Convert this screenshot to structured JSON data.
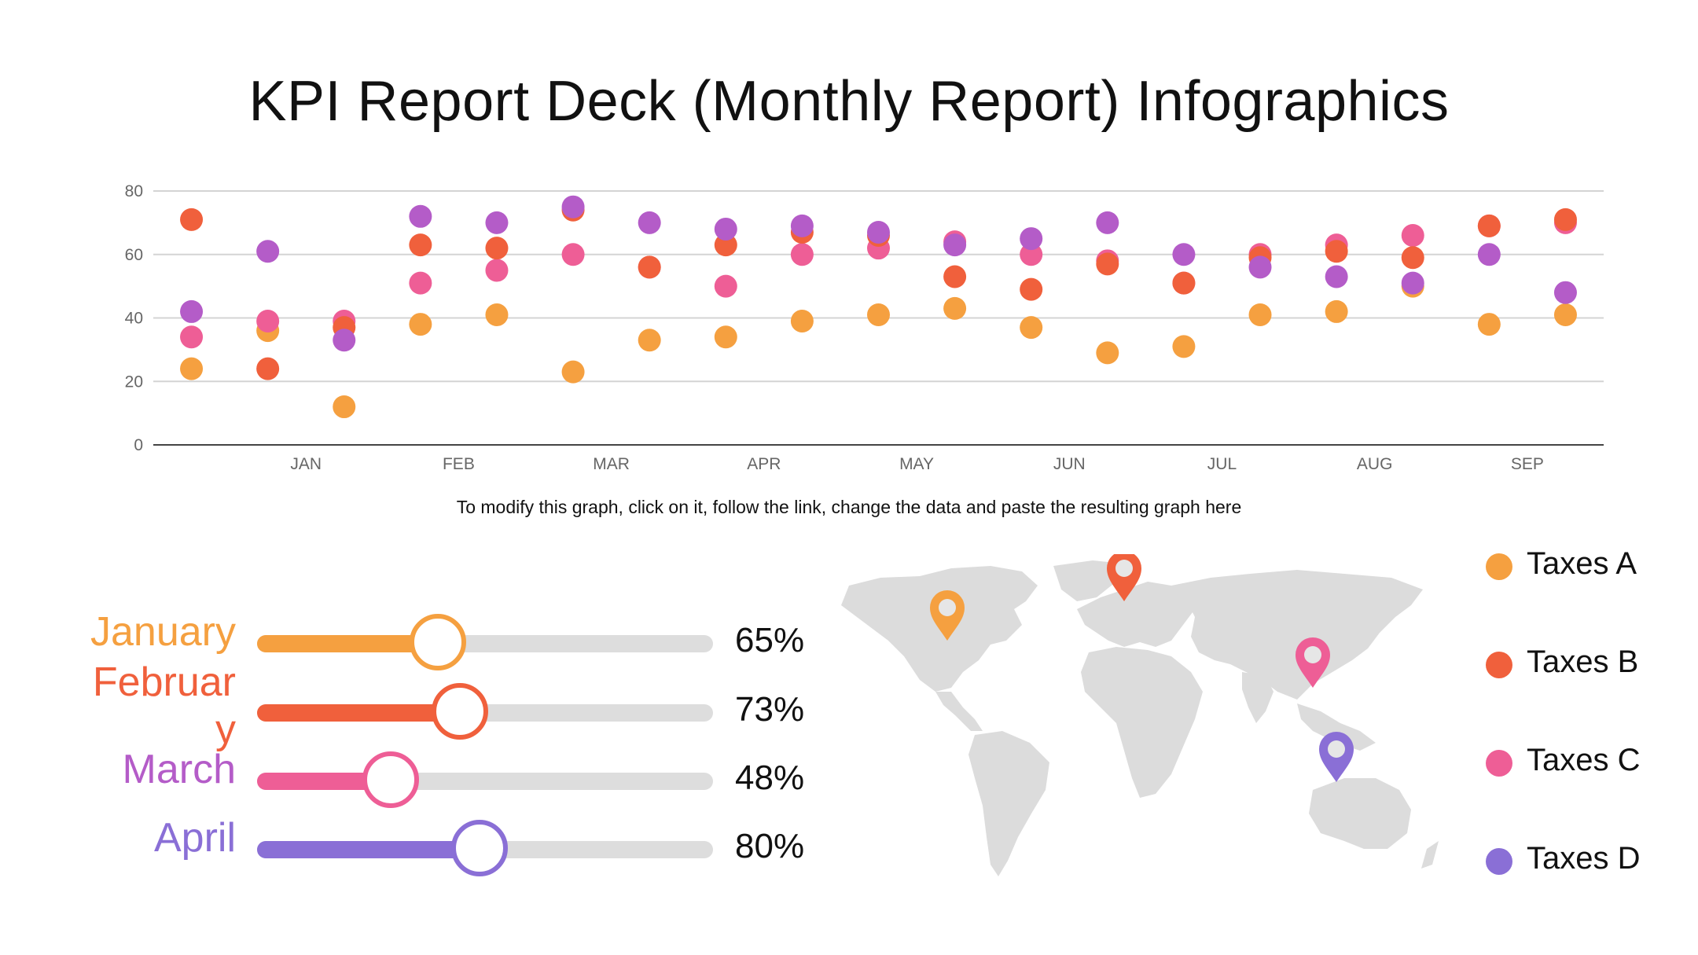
{
  "title": "KPI Report Deck (Monthly Report) Infographics",
  "note": "To modify this graph, click on it, follow the link, change the data and paste the resulting graph here",
  "colors": {
    "taxes_a": "#F5A040",
    "taxes_b": "#F0603C",
    "taxes_c": "#EE5E96",
    "taxes_d": "#B45CC8",
    "april": "#8A6FD6",
    "grid": "#d4d4d4",
    "axis": "#444444",
    "track": "#dddddd",
    "map": "#dcdcdc"
  },
  "chart_data": {
    "type": "scatter",
    "ylim": [
      0,
      80
    ],
    "yticks": [
      "0",
      "20",
      "40",
      "60",
      "80"
    ],
    "x_labels": [
      "JAN",
      "FEB",
      "MAR",
      "APR",
      "MAY",
      "JUN",
      "JUL",
      "AUG",
      "SEP"
    ],
    "x_label_positions": [
      1.5,
      3.5,
      5.5,
      7.5,
      9.5,
      11.5,
      13.5,
      15.5,
      17.5
    ],
    "x_count": 19,
    "grid": true,
    "series": [
      {
        "name": "Taxes A",
        "values": [
          24,
          36,
          12,
          38,
          41,
          23,
          33,
          34,
          39,
          41,
          43,
          37,
          29,
          31,
          41,
          42,
          50,
          38,
          41
        ]
      },
      {
        "name": "Taxes B",
        "values": [
          71,
          24,
          37,
          63,
          62,
          74,
          56,
          63,
          67,
          66,
          53,
          49,
          57,
          51,
          59,
          61,
          59,
          69,
          71
        ]
      },
      {
        "name": "Taxes C",
        "values": [
          34,
          39,
          39,
          51,
          55,
          60,
          56,
          50,
          60,
          62,
          64,
          60,
          58,
          51,
          60,
          63,
          66,
          69,
          70
        ]
      },
      {
        "name": "Taxes D",
        "values": [
          42,
          61,
          33,
          72,
          70,
          75,
          70,
          68,
          69,
          67,
          63,
          65,
          70,
          60,
          56,
          53,
          51,
          60,
          48
        ]
      }
    ]
  },
  "sliders": [
    {
      "label": "January",
      "value": 65,
      "pct": "65%",
      "color": "#F5A040"
    },
    {
      "label": "Februar\ny",
      "value": 73,
      "pct": "73%",
      "color": "#F0603C"
    },
    {
      "label": "March",
      "value": 48,
      "pct": "48%",
      "color": "#EE5E96"
    },
    {
      "label": "April",
      "value": 80,
      "pct": "80%",
      "color": "#8A6FD6"
    }
  ],
  "month_label_colors": [
    "#F5A040",
    "#F0603C",
    "#B45CC8",
    "#8A6FD6"
  ],
  "legend": [
    {
      "label": "Taxes A",
      "color": "#F5A040"
    },
    {
      "label": "Taxes B",
      "color": "#F0603C"
    },
    {
      "label": "Taxes C",
      "color": "#EE5E96"
    },
    {
      "label": "Taxes D",
      "color": "#8A6FD6"
    }
  ],
  "map_pins": [
    {
      "name": "north-america-pin",
      "color": "#F5A040"
    },
    {
      "name": "europe-pin",
      "color": "#F0603C"
    },
    {
      "name": "south-asia-pin",
      "color": "#EE5E96"
    },
    {
      "name": "australia-pin",
      "color": "#8A6FD6"
    }
  ]
}
